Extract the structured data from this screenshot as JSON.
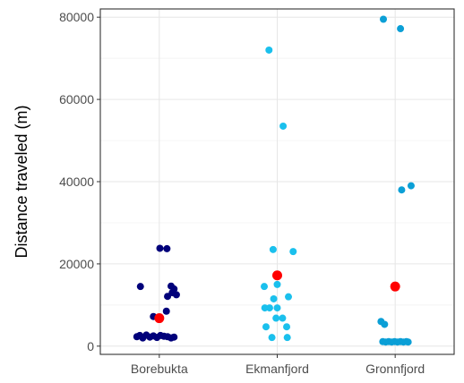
{
  "chart_data": {
    "type": "scatter",
    "ylabel": "Distance traveled (m)",
    "xlabel": "",
    "ylim": [
      -2000,
      82000
    ],
    "yticks": [
      0,
      20000,
      40000,
      60000,
      80000
    ],
    "ytick_labels": [
      "0",
      "20000",
      "40000",
      "60000",
      "80000"
    ],
    "categories": [
      "Borebukta",
      "Ekmanfjord",
      "Gronnfjord"
    ],
    "grid": true,
    "legend": "none",
    "groups": [
      {
        "category": "Borebukta",
        "color": "#00007a",
        "points": [
          {
            "offset": -0.38,
            "y": 2300
          },
          {
            "offset": -0.33,
            "y": 2600
          },
          {
            "offset": -0.28,
            "y": 2000
          },
          {
            "offset": -0.22,
            "y": 2700
          },
          {
            "offset": -0.16,
            "y": 2200
          },
          {
            "offset": -0.1,
            "y": 2500
          },
          {
            "offset": -0.04,
            "y": 2100
          },
          {
            "offset": 0.02,
            "y": 2600
          },
          {
            "offset": 0.08,
            "y": 2400
          },
          {
            "offset": 0.14,
            "y": 2300
          },
          {
            "offset": 0.2,
            "y": 2000
          },
          {
            "offset": 0.25,
            "y": 2200
          },
          {
            "offset": -0.32,
            "y": 14500
          },
          {
            "offset": -0.1,
            "y": 7200
          },
          {
            "offset": 0.01,
            "y": 23800
          },
          {
            "offset": 0.13,
            "y": 23700
          },
          {
            "offset": 0.14,
            "y": 12100
          },
          {
            "offset": 0.2,
            "y": 14600
          },
          {
            "offset": 0.22,
            "y": 13000
          },
          {
            "offset": 0.25,
            "y": 13900
          },
          {
            "offset": 0.29,
            "y": 12500
          },
          {
            "offset": 0.12,
            "y": 8500
          }
        ],
        "mean": 6800
      },
      {
        "category": "Ekmanfjord",
        "color": "#1ac0ed",
        "points": [
          {
            "offset": -0.14,
            "y": 72000
          },
          {
            "offset": 0.1,
            "y": 53500
          },
          {
            "offset": -0.07,
            "y": 23500
          },
          {
            "offset": 0.27,
            "y": 23000
          },
          {
            "offset": 0.0,
            "y": 15000
          },
          {
            "offset": -0.22,
            "y": 14500
          },
          {
            "offset": -0.06,
            "y": 11500
          },
          {
            "offset": 0.19,
            "y": 12000
          },
          {
            "offset": -0.21,
            "y": 9300
          },
          {
            "offset": -0.13,
            "y": 9300
          },
          {
            "offset": 0.0,
            "y": 9300
          },
          {
            "offset": -0.02,
            "y": 6800
          },
          {
            "offset": 0.09,
            "y": 6800
          },
          {
            "offset": -0.19,
            "y": 4700
          },
          {
            "offset": 0.16,
            "y": 4700
          },
          {
            "offset": -0.09,
            "y": 2100
          },
          {
            "offset": 0.17,
            "y": 2100
          }
        ],
        "mean": 17200
      },
      {
        "category": "Gronnfjord",
        "color": "#0b9fd6",
        "points": [
          {
            "offset": -0.2,
            "y": 79500
          },
          {
            "offset": 0.09,
            "y": 77200
          },
          {
            "offset": 0.27,
            "y": 39000
          },
          {
            "offset": 0.11,
            "y": 38000
          },
          {
            "offset": -0.24,
            "y": 6000
          },
          {
            "offset": -0.18,
            "y": 5300
          },
          {
            "offset": -0.21,
            "y": 1100
          },
          {
            "offset": -0.16,
            "y": 1000
          },
          {
            "offset": -0.11,
            "y": 1100
          },
          {
            "offset": -0.06,
            "y": 1000
          },
          {
            "offset": -0.01,
            "y": 1100
          },
          {
            "offset": 0.04,
            "y": 1000
          },
          {
            "offset": 0.09,
            "y": 1100
          },
          {
            "offset": 0.14,
            "y": 1000
          },
          {
            "offset": 0.19,
            "y": 1100
          },
          {
            "offset": 0.22,
            "y": 1000
          }
        ],
        "mean": 14500
      }
    ],
    "mean_color": "#ff0000"
  }
}
